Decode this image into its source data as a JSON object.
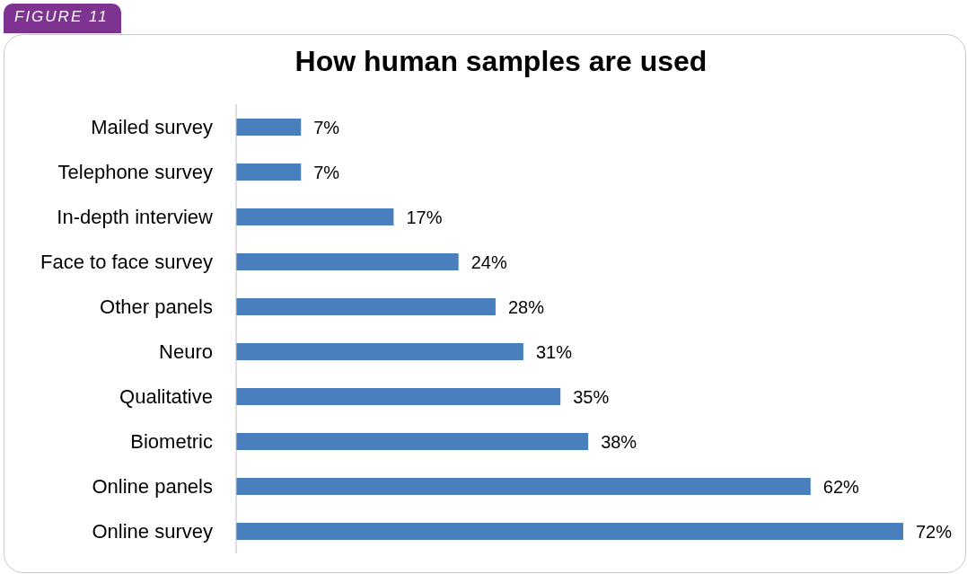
{
  "chart_data": {
    "type": "bar",
    "orientation": "horizontal",
    "title": "How human samples are used",
    "annotations": [
      "FIGURE 11"
    ],
    "categories": [
      "Mailed survey",
      "Telephone survey",
      "In-depth interview",
      "Face to face survey",
      "Other panels",
      "Neuro",
      "Qualitative",
      "Biometric",
      "Online panels",
      "Online survey"
    ],
    "values": [
      7,
      7,
      17,
      24,
      28,
      31,
      35,
      38,
      62,
      72
    ],
    "value_labels": [
      "7%",
      "7%",
      "17%",
      "24%",
      "28%",
      "31%",
      "35%",
      "38%",
      "62%",
      "72%"
    ],
    "color": "#4a7fbd"
  }
}
